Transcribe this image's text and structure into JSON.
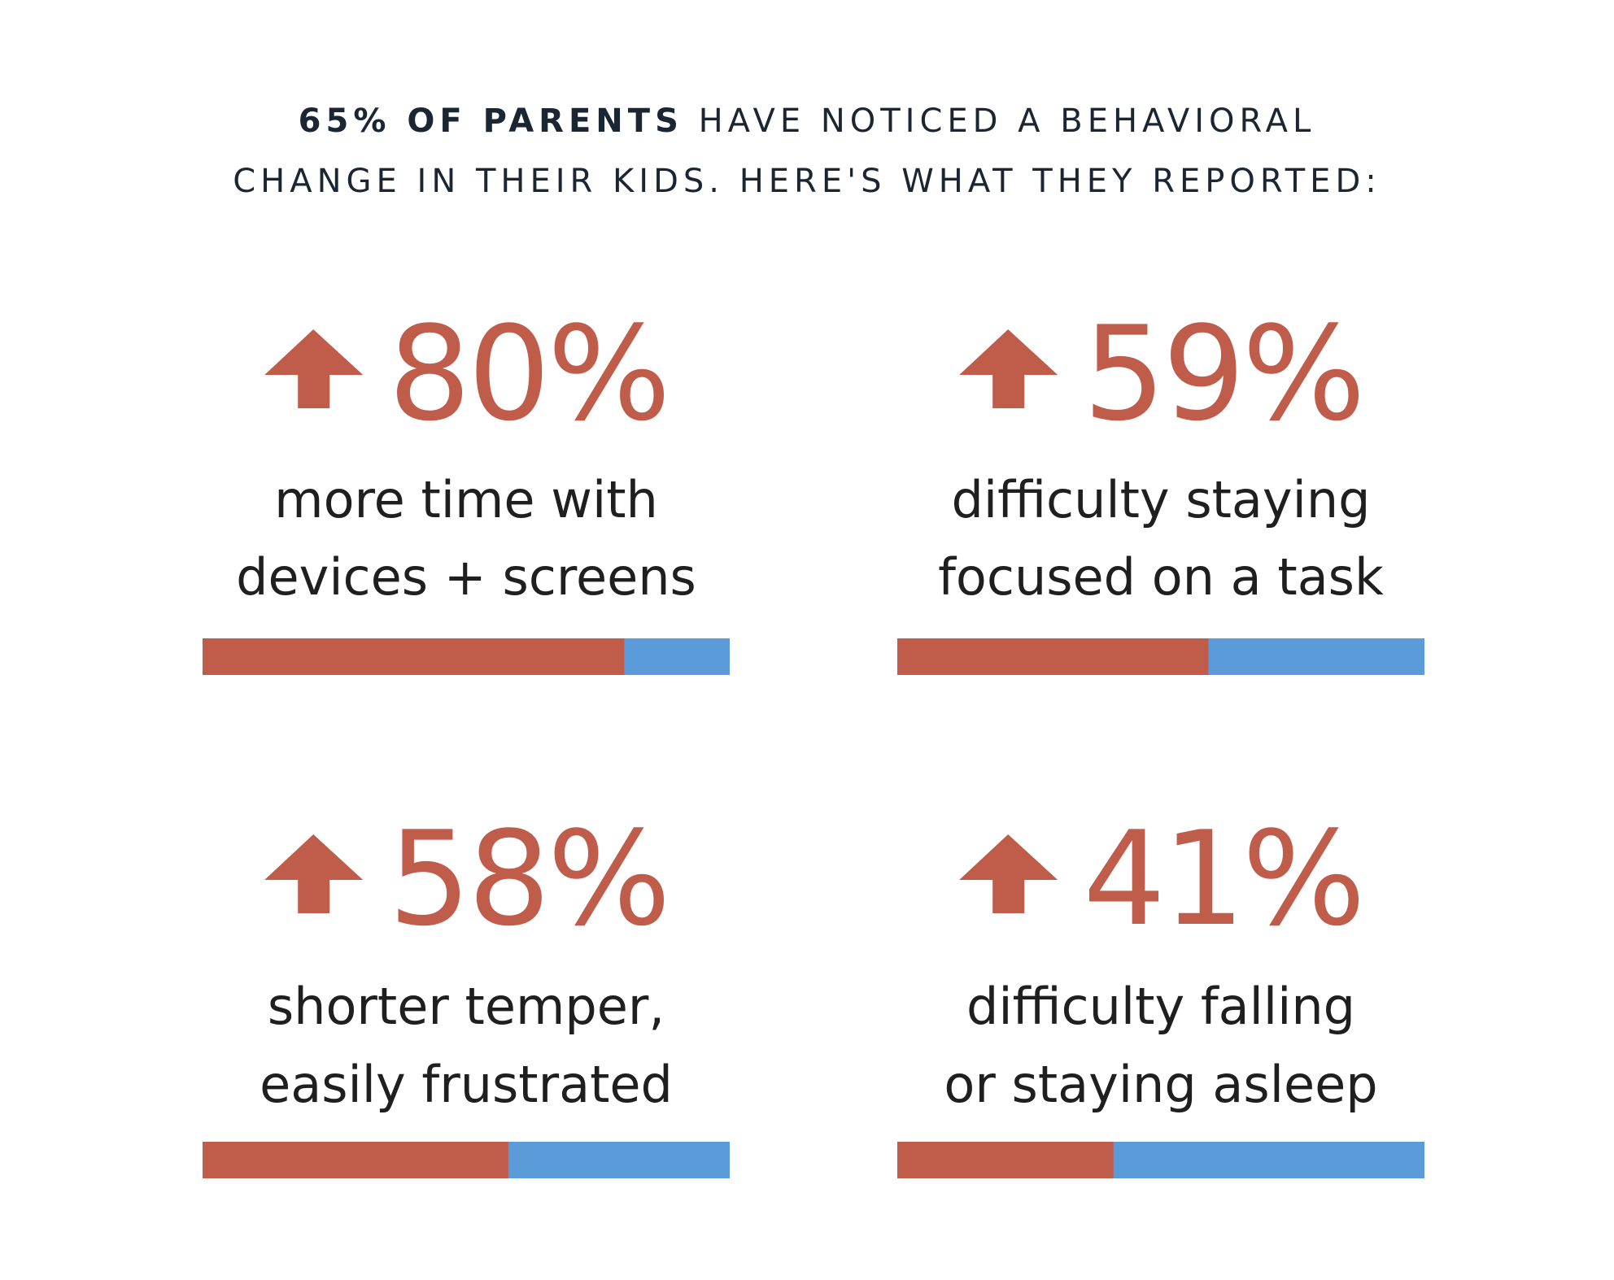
{
  "chart_data": {
    "type": "bar",
    "title": {
      "emphasis": "65% OF PARENTS",
      "lines": [
        "HAVE NOTICED A BEHAVIORAL",
        "CHANGE IN THEIR KIDS. HERE'S WHAT THEY REPORTED:"
      ]
    },
    "categories": [
      [
        "more time with",
        "devices + screens"
      ],
      [
        "difficulty staying",
        "focused on a task"
      ],
      [
        "shorter temper,",
        "easily frustrated"
      ],
      [
        "difficulty falling",
        "or staying asleep"
      ]
    ],
    "values": [
      80,
      59,
      58,
      41
    ],
    "value_labels": [
      "80%",
      "59%",
      "58%",
      "41%"
    ],
    "xlim": [
      0,
      100
    ],
    "color": "#c05c4a",
    "track_color": "#5b9bd9"
  }
}
